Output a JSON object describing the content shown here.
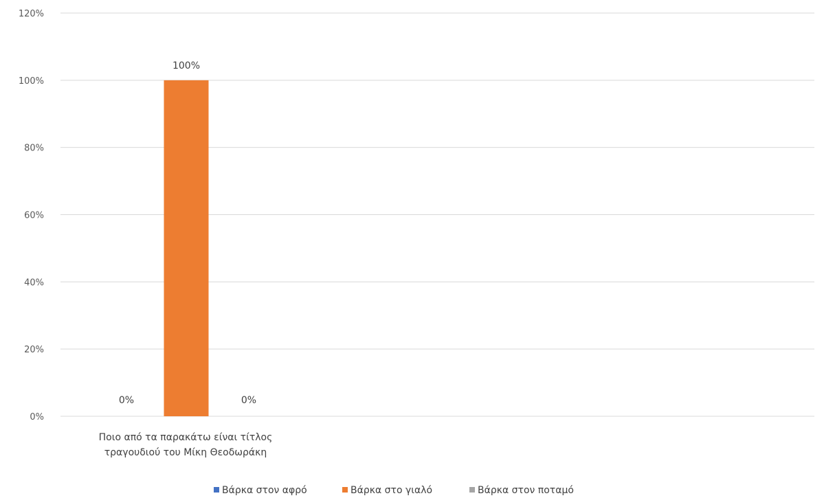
{
  "chart_data": {
    "type": "bar",
    "categories": [
      "Ποιο από τα παρακάτω είναι τίτλος τραγουδιού του Μίκη Θεοδωράκη"
    ],
    "category_label_lines": [
      "Ποιο από τα παρακάτω είναι τίτλος",
      "τραγουδιού του Μίκη Θεοδωράκη"
    ],
    "series": [
      {
        "name": "Βάρκα στον αφρό",
        "values": [
          0
        ],
        "color": "#4472C4",
        "data_label": "0%"
      },
      {
        "name": "Βάρκα στο γιαλό",
        "values": [
          100
        ],
        "color": "#ED7D31",
        "data_label": "100%"
      },
      {
        "name": "Βάρκα στον ποταμό",
        "values": [
          0
        ],
        "color": "#A5A5A5",
        "data_label": "0%"
      }
    ],
    "y_ticks": [
      0,
      20,
      40,
      60,
      80,
      100,
      120
    ],
    "y_tick_labels": [
      "0%",
      "20%",
      "40%",
      "60%",
      "80%",
      "100%",
      "120%"
    ],
    "ylim": [
      0,
      120
    ],
    "unit": "%",
    "title": "",
    "xlabel": "",
    "ylabel": "",
    "grid": true,
    "legend_position": "bottom"
  }
}
